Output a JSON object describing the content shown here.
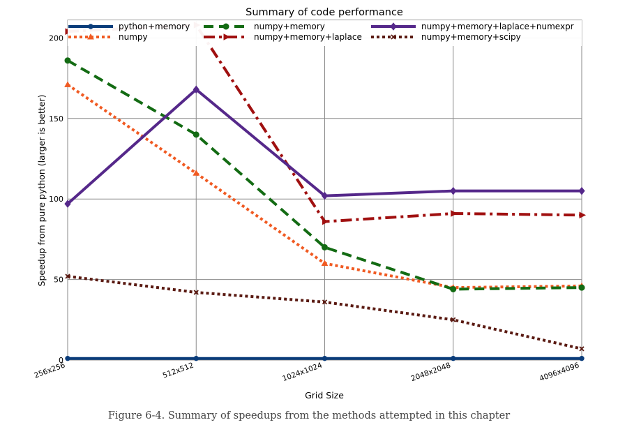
{
  "chart_data": {
    "type": "line",
    "title": "Summary of code performance",
    "xlabel": "Grid Size",
    "ylabel": "Speedup from pure python (larger is better)",
    "categories": [
      "256x256",
      "512x512",
      "1024x1024",
      "2048x2048",
      "4096x4096"
    ],
    "x": [
      256,
      512,
      1024,
      2048,
      4096
    ],
    "x_scale": "log2",
    "ylim": [
      0,
      211
    ],
    "yticks": [
      0,
      50,
      100,
      150,
      200
    ],
    "grid": true,
    "legend_position": "top",
    "series": [
      {
        "name": "python+memory",
        "color": "#0a3c7a",
        "style": "solid",
        "marker": "circle",
        "values": [
          1,
          1,
          1,
          1,
          1
        ]
      },
      {
        "name": "numpy",
        "color": "#f05a22",
        "style": "dotted",
        "marker": "triangle",
        "values": [
          171,
          116,
          60,
          45,
          46
        ]
      },
      {
        "name": "numpy+memory",
        "color": "#136b13",
        "style": "dashed",
        "marker": "octagon",
        "values": [
          186,
          140,
          70,
          44,
          45
        ]
      },
      {
        "name": "numpy+memory+laplace",
        "color": "#a01010",
        "style": "dashdot",
        "marker": "triangle-right",
        "values": [
          204,
          208,
          86,
          91,
          90
        ]
      },
      {
        "name": "numpy+memory+laplace+numexpr",
        "color": "#55288a",
        "style": "solid",
        "marker": "diamond",
        "values": [
          97,
          168,
          102,
          105,
          105
        ]
      },
      {
        "name": "numpy+memory+scipy",
        "color": "#5a1a12",
        "style": "dotted",
        "marker": "x",
        "values": [
          52,
          42,
          36,
          25,
          7
        ]
      }
    ]
  },
  "caption": "Figure 6-4. Summary of speedups from the methods attempted in this chapter"
}
